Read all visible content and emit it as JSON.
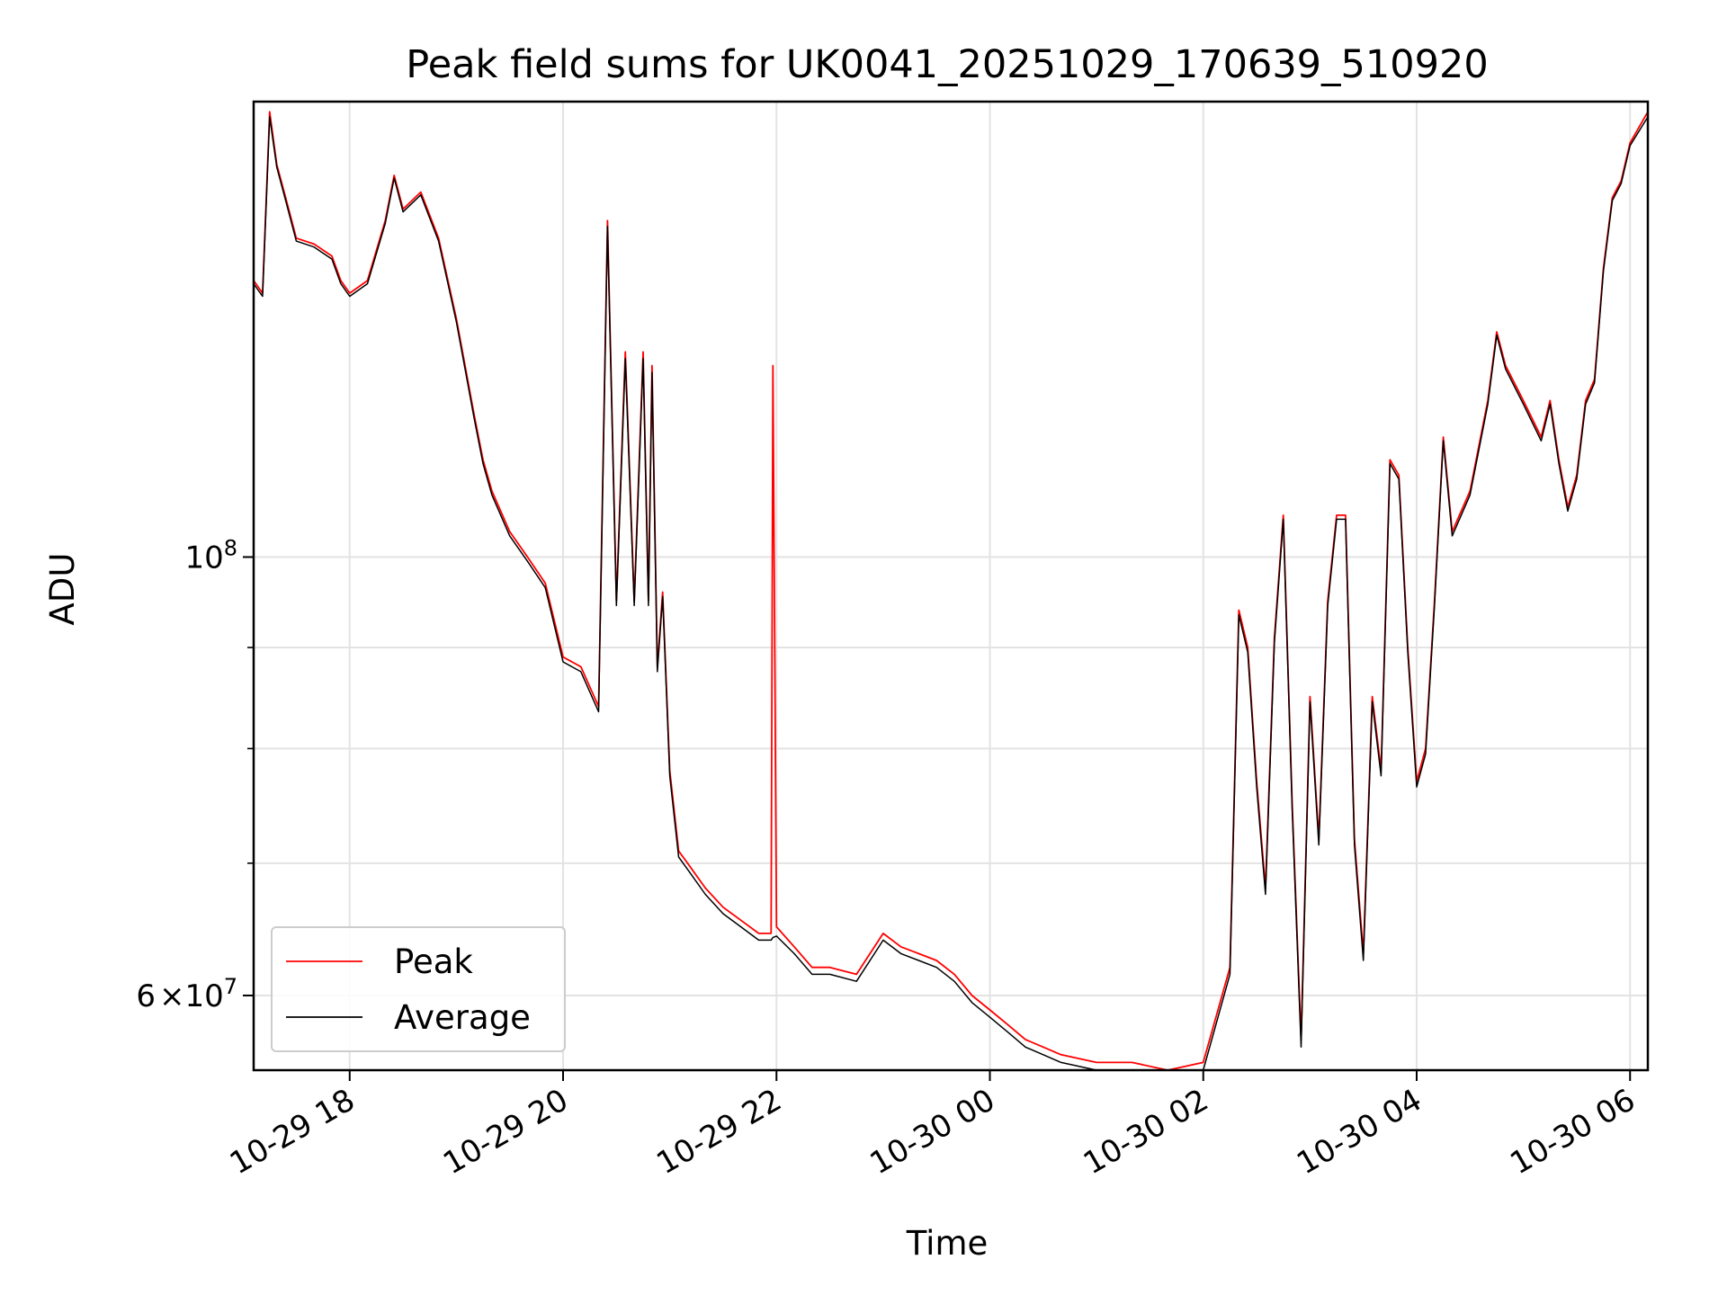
{
  "chart_data": {
    "type": "line",
    "title": "Peak field sums for UK0041_20251029_170639_510920",
    "xlabel": "Time",
    "ylabel": "ADU",
    "yscale": "log",
    "ylim": [
      55000000,
      170000000
    ],
    "xlim": [
      "10-29 17:06",
      "10-30 06:10"
    ],
    "grid": true,
    "legend": "lower-left",
    "x_ticks": [
      "10-29 18",
      "10-29 20",
      "10-29 22",
      "10-30 00",
      "10-30 02",
      "10-30 04",
      "10-30 06"
    ],
    "y_major_ticks": [
      {
        "value": 100000000,
        "base": "10",
        "exp": "8"
      },
      {
        "value": 60000000,
        "mantissa": "6",
        "base": "10",
        "exp": "7"
      }
    ],
    "y_minor_ticks": [
      70000000,
      80000000,
      90000000
    ],
    "colors": {
      "Peak": "#ff0000",
      "Average": "#000000"
    },
    "x_times": [
      "10-29 17:06",
      "10-29 17:11",
      "10-29 17:15",
      "10-29 17:19",
      "10-29 17:24",
      "10-29 17:30",
      "10-29 17:40",
      "10-29 17:50",
      "10-29 17:55",
      "10-29 18:00",
      "10-29 18:10",
      "10-29 18:20",
      "10-29 18:25",
      "10-29 18:30",
      "10-29 18:40",
      "10-29 18:50",
      "10-29 19:00",
      "10-29 19:10",
      "10-29 19:15",
      "10-29 19:20",
      "10-29 19:30",
      "10-29 19:40",
      "10-29 19:50",
      "10-29 20:00",
      "10-29 20:10",
      "10-29 20:20",
      "10-29 20:25",
      "10-29 20:30",
      "10-29 20:35",
      "10-29 20:40",
      "10-29 20:45",
      "10-29 20:48",
      "10-29 20:50",
      "10-29 20:53",
      "10-29 20:56",
      "10-29 21:00",
      "10-29 21:05",
      "10-29 21:10",
      "10-29 21:20",
      "10-29 21:30",
      "10-29 21:40",
      "10-29 21:50",
      "10-29 21:57",
      "10-29 21:58",
      "10-29 22:00",
      "10-29 22:10",
      "10-29 22:20",
      "10-29 22:30",
      "10-29 22:45",
      "10-29 23:00",
      "10-29 23:10",
      "10-29 23:20",
      "10-29 23:30",
      "10-29 23:40",
      "10-29 23:50",
      "10-30 00:00",
      "10-30 00:10",
      "10-30 00:20",
      "10-30 00:30",
      "10-30 00:40",
      "10-30 01:00",
      "10-30 01:20",
      "10-30 01:40",
      "10-30 02:00",
      "10-30 02:15",
      "10-30 02:20",
      "10-30 02:25",
      "10-30 02:30",
      "10-30 02:35",
      "10-30 02:40",
      "10-30 02:45",
      "10-30 02:50",
      "10-30 02:55",
      "10-30 03:00",
      "10-30 03:05",
      "10-30 03:10",
      "10-30 03:15",
      "10-30 03:20",
      "10-30 03:25",
      "10-30 03:30",
      "10-30 03:35",
      "10-30 03:40",
      "10-30 03:45",
      "10-30 03:50",
      "10-30 03:55",
      "10-30 04:00",
      "10-30 04:05",
      "10-30 04:10",
      "10-30 04:15",
      "10-30 04:20",
      "10-30 04:30",
      "10-30 04:40",
      "10-30 04:45",
      "10-30 04:50",
      "10-30 05:00",
      "10-30 05:10",
      "10-30 05:15",
      "10-30 05:20",
      "10-30 05:25",
      "10-30 05:30",
      "10-30 05:35",
      "10-30 05:40",
      "10-30 05:45",
      "10-30 05:50",
      "10-30 05:55",
      "10-30 06:00",
      "10-30 06:10"
    ],
    "series": [
      {
        "name": "Peak",
        "values": [
          138000000,
          136000000,
          168000000,
          158000000,
          152000000,
          145000000,
          144000000,
          142000000,
          138000000,
          136000000,
          138000000,
          148000000,
          156000000,
          150000000,
          153000000,
          145000000,
          132000000,
          118000000,
          112000000,
          108000000,
          103000000,
          100000000,
          97000000,
          89000000,
          88000000,
          84000000,
          148000000,
          95000000,
          127000000,
          95000000,
          127000000,
          95000000,
          125000000,
          88000000,
          96000000,
          78000000,
          71000000,
          70000000,
          68000000,
          66500000,
          65500000,
          64500000,
          64500000,
          125000000,
          65000000,
          63500000,
          62000000,
          62000000,
          61500000,
          64500000,
          63500000,
          63000000,
          62500000,
          61500000,
          60000000,
          59000000,
          58000000,
          57000000,
          56500000,
          56000000,
          55500000,
          55500000,
          55000000,
          55500000,
          62000000,
          94000000,
          90000000,
          77000000,
          68000000,
          91000000,
          105000000,
          75000000,
          57000000,
          85000000,
          72000000,
          95000000,
          105000000,
          105000000,
          72000000,
          63000000,
          85000000,
          78000000,
          112000000,
          110000000,
          90000000,
          77000000,
          80000000,
          95000000,
          115000000,
          103000000,
          108000000,
          120000000,
          130000000,
          125000000,
          120000000,
          115000000,
          120000000,
          112000000,
          106000000,
          110000000,
          120000000,
          123000000,
          140000000,
          152000000,
          155000000,
          162000000,
          168000000
        ]
      },
      {
        "name": "Average",
        "values": [
          137500000,
          135500000,
          167000000,
          157500000,
          151500000,
          144500000,
          143500000,
          141500000,
          137500000,
          135500000,
          137500000,
          147500000,
          155500000,
          149500000,
          152500000,
          144500000,
          131500000,
          117500000,
          111500000,
          107500000,
          102500000,
          99500000,
          96500000,
          88500000,
          87500000,
          83500000,
          147000000,
          94500000,
          126000000,
          94500000,
          126000000,
          94500000,
          124000000,
          87500000,
          95500000,
          77500000,
          70500000,
          69500000,
          67500000,
          66000000,
          65000000,
          64000000,
          64000000,
          64200000,
          64300000,
          63000000,
          61500000,
          61500000,
          61000000,
          64000000,
          63000000,
          62500000,
          62000000,
          61000000,
          59500000,
          58500000,
          57500000,
          56500000,
          56000000,
          55500000,
          55000000,
          55000000,
          54700000,
          55000000,
          61500000,
          93500000,
          89500000,
          76500000,
          67500000,
          90500000,
          104500000,
          74500000,
          56500000,
          84500000,
          71500000,
          94500000,
          104500000,
          104500000,
          71500000,
          62500000,
          84500000,
          77500000,
          111500000,
          109500000,
          89500000,
          76500000,
          79500000,
          94500000,
          114500000,
          102500000,
          107500000,
          119500000,
          129500000,
          124500000,
          119500000,
          114500000,
          119500000,
          111500000,
          105500000,
          109500000,
          119500000,
          122500000,
          139500000,
          151500000,
          154500000,
          161500000,
          167000000
        ]
      }
    ]
  }
}
